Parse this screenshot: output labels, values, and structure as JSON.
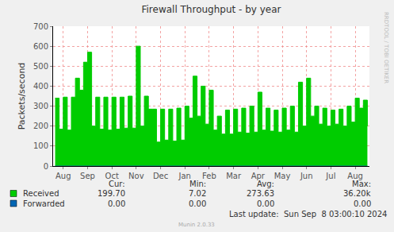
{
  "chart_data": {
    "type": "area",
    "title": "Firewall Throughput - by year",
    "ylabel": "Packets/second",
    "categories": [
      null,
      null,
      "Aug",
      null,
      null,
      null,
      null,
      null,
      "Sep",
      null,
      null,
      null,
      null,
      null,
      "Oct",
      null,
      null,
      null,
      null,
      null,
      "Nov",
      null,
      null,
      null,
      null,
      null,
      "Dec",
      null,
      null,
      null,
      null,
      null,
      "Jan",
      null,
      null,
      null,
      null,
      null,
      "Feb",
      null,
      null,
      null,
      null,
      null,
      "Mar",
      null,
      null,
      null,
      null,
      null,
      "Apr",
      null,
      null,
      null,
      null,
      null,
      "May",
      null,
      null,
      null,
      null,
      null,
      "Jun",
      null,
      null,
      null,
      null,
      null,
      "Jul",
      null,
      null,
      null,
      null,
      null,
      "Aug",
      null,
      null,
      null
    ],
    "series": [
      {
        "name": "Received",
        "color": "#00cc00",
        "values": [
          340,
          185,
          345,
          180,
          345,
          440,
          380,
          520,
          570,
          200,
          345,
          185,
          345,
          180,
          345,
          185,
          345,
          190,
          350,
          190,
          600,
          200,
          350,
          285,
          285,
          120,
          285,
          130,
          285,
          125,
          290,
          130,
          300,
          240,
          450,
          250,
          400,
          210,
          380,
          180,
          250,
          160,
          280,
          160,
          285,
          170,
          290,
          165,
          300,
          170,
          370,
          180,
          290,
          175,
          280,
          170,
          290,
          180,
          300,
          170,
          420,
          200,
          440,
          250,
          300,
          210,
          290,
          200,
          280,
          210,
          285,
          200,
          300,
          220,
          340,
          290,
          330,
          200
        ]
      },
      {
        "name": "Forwarded",
        "color": "#0066b3",
        "values": [
          0,
          0,
          0,
          0,
          0,
          0,
          0,
          0,
          0,
          0,
          0,
          0,
          0,
          0,
          0,
          0,
          0,
          0,
          0,
          0,
          0,
          0,
          0,
          0,
          0,
          0,
          0,
          0,
          0,
          0,
          0,
          0,
          0,
          0,
          0,
          0,
          0,
          0,
          0,
          0,
          0,
          0,
          0,
          0,
          0,
          0,
          0,
          0,
          0,
          0,
          0,
          0,
          0,
          0,
          0,
          0,
          0,
          0,
          0,
          0,
          0,
          0,
          0,
          0,
          0,
          0,
          0,
          0,
          0,
          0,
          0,
          0,
          0,
          0,
          0,
          0,
          0,
          0
        ]
      }
    ],
    "ylim": [
      0,
      700
    ],
    "yticks": [
      0,
      100,
      200,
      300,
      400,
      500,
      600,
      700
    ],
    "grid": true,
    "legend_table": {
      "columns": [
        "Cur:",
        "Min:",
        "Avg:",
        "Max:"
      ],
      "rows": [
        [
          "199.70",
          "7.02",
          "273.63",
          "36.20k"
        ],
        [
          "0.00",
          "0.00",
          "0.00",
          "0.00"
        ]
      ]
    },
    "footer": "Last update:  Sun Sep  8 03:00:10 2024",
    "credit": "Munin 2.0.33",
    "watermark": "RRDTOOL / TOBI OETIKER"
  }
}
